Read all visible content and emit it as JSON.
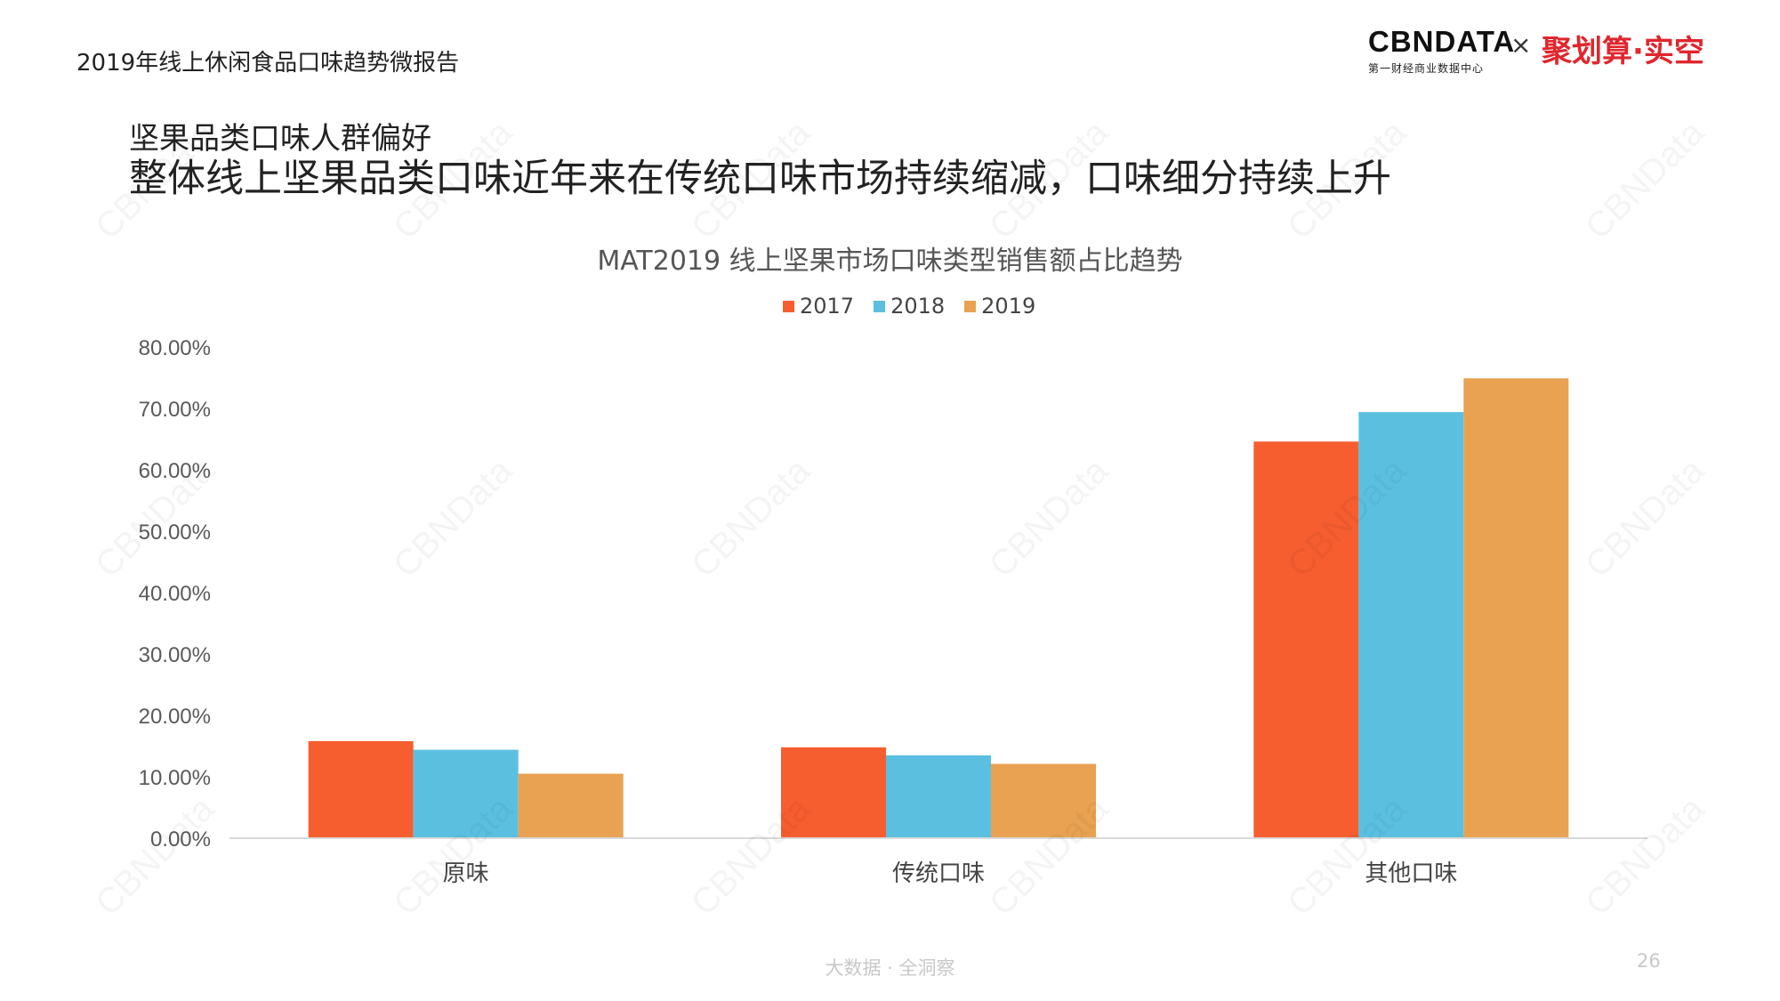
{
  "header": {
    "report_title": "2019年线上休闲食品口味趋势微报告",
    "logo_main": "CBNDATA",
    "logo_sub": "第一财经商业数据中心",
    "times_sign": "×",
    "partner_logo": "聚划算·实空"
  },
  "slide": {
    "subhead": "坚果品类口味人群偏好",
    "headline": "整体线上坚果品类口味近年来在传统口味市场持续缩减，口味细分持续上升"
  },
  "watermark_text": "CBNData",
  "chart_data": {
    "type": "bar",
    "title": "MAT2019 线上坚果市场口味类型销售额占比趋势",
    "categories": [
      "原味",
      "传统口味",
      "其他口味"
    ],
    "series": [
      {
        "name": "2017",
        "color": "#f65e30",
        "values": [
          15.8,
          14.8,
          64.6
        ]
      },
      {
        "name": "2018",
        "color": "#5bc0e0",
        "values": [
          14.4,
          13.5,
          69.4
        ]
      },
      {
        "name": "2019",
        "color": "#e8a251",
        "values": [
          10.5,
          12.1,
          74.9
        ]
      }
    ],
    "ylim": [
      0,
      80
    ],
    "yticks": [
      "0.00%",
      "10.00%",
      "20.00%",
      "30.00%",
      "40.00%",
      "50.00%",
      "60.00%",
      "70.00%",
      "80.00%"
    ],
    "legend_position": "top-center",
    "grid": false
  },
  "footer": {
    "slogan": "大数据 · 全洞察",
    "page_number": "26"
  }
}
